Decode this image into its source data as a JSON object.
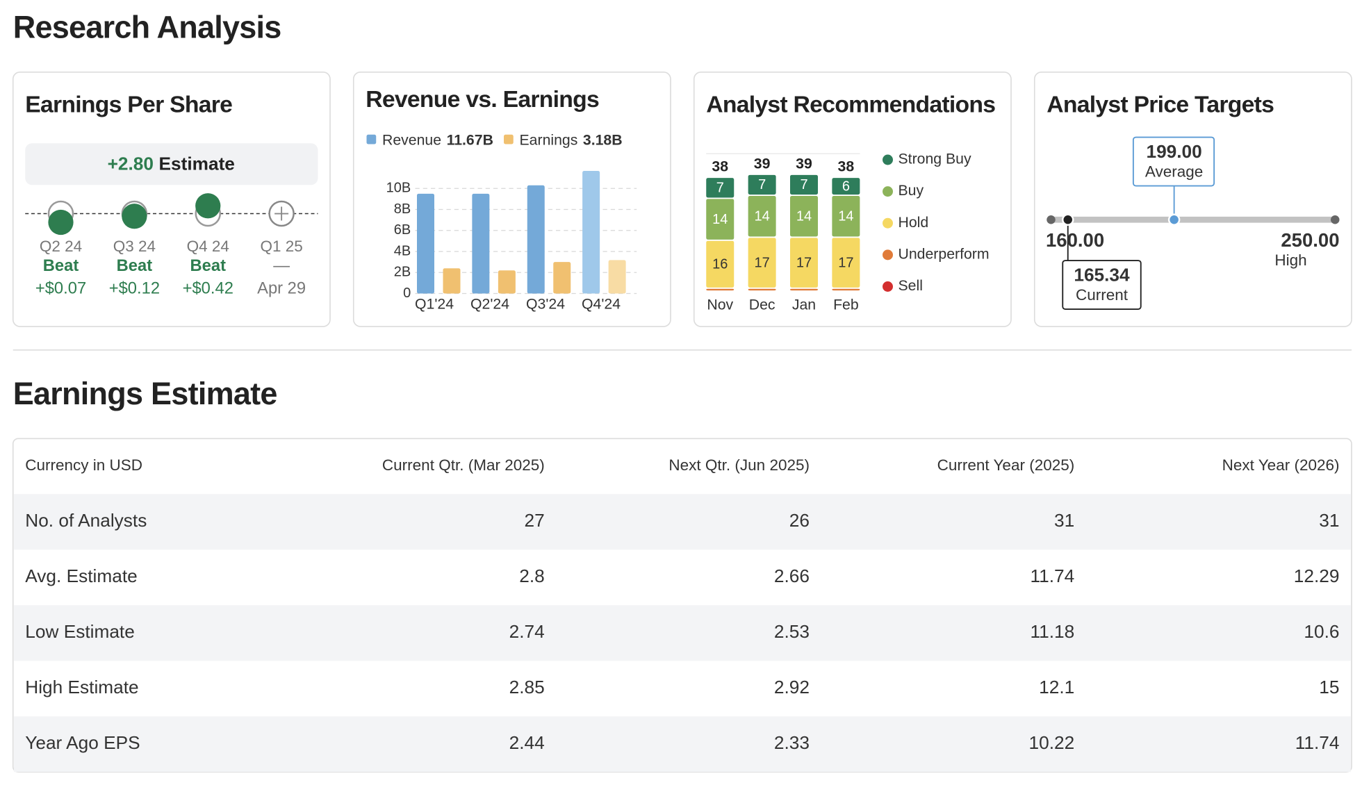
{
  "header": {
    "title": "Research Analysis"
  },
  "eps": {
    "title": "Earnings Per Share",
    "estimate": {
      "value": 2.8,
      "label": "+2.80",
      "name": "Estimate"
    },
    "quarters": [
      {
        "quarter": "Q2 24",
        "result": "Beat",
        "surprise": {
          "value": 0.07,
          "label": "+$0.07"
        }
      },
      {
        "quarter": "Q3 24",
        "result": "Beat",
        "surprise": {
          "value": 0.12,
          "label": "+$0.12"
        }
      },
      {
        "quarter": "Q4 24",
        "result": "Beat",
        "surprise": {
          "value": 0.42,
          "label": "+$0.42"
        }
      },
      {
        "quarter": "Q1 25",
        "result": "—",
        "date": "Apr 29"
      }
    ]
  },
  "revenue_earnings": {
    "type": "bar",
    "title": "Revenue vs. Earnings",
    "categories": [
      "Q1'24",
      "Q2'24",
      "Q3'24",
      "Q4'24"
    ],
    "series": [
      {
        "name": "Revenue",
        "legend_label": "11.67B",
        "color": "#74a9d8",
        "colors": [
          "#74a9d8",
          "#74a9d8",
          "#74a9d8",
          "#9fc8ea"
        ],
        "values": [
          9.5,
          9.5,
          10.3,
          11.67
        ]
      },
      {
        "name": "Earnings",
        "legend_label": "3.18B",
        "color": "#f0c070",
        "colors": [
          "#f0c070",
          "#f0c070",
          "#f0c070",
          "#f8dca4"
        ],
        "values": [
          2.4,
          2.2,
          3.0,
          3.18
        ]
      }
    ],
    "ylim": [
      0,
      12
    ],
    "yticks": [
      0,
      {
        "value": 2,
        "label": "2B"
      },
      {
        "value": 4,
        "label": "4B"
      },
      {
        "value": 6,
        "label": "6B"
      },
      {
        "value": 8,
        "label": "8B"
      },
      {
        "value": 10,
        "label": "10B"
      }
    ],
    "grid": true
  },
  "recommendations": {
    "type": "stacked-bar",
    "title": "Analyst Recommendations",
    "categories": [
      "Nov",
      "Dec",
      "Jan",
      "Feb"
    ],
    "totals": [
      38,
      39,
      39,
      38
    ],
    "series": [
      {
        "name": "Sell",
        "color": "#d32f2f",
        "values": [
          0,
          0,
          0,
          0
        ]
      },
      {
        "name": "Underperform",
        "color": "#e07b39",
        "values": [
          1,
          1,
          1,
          1
        ]
      },
      {
        "name": "Hold",
        "color": "#f5d862",
        "values": [
          16,
          17,
          17,
          17
        ]
      },
      {
        "name": "Buy",
        "color": "#8cb35a",
        "values": [
          14,
          14,
          14,
          14
        ]
      },
      {
        "name": "Strong Buy",
        "color": "#2e7d5b",
        "values": [
          7,
          7,
          7,
          6
        ]
      }
    ]
  },
  "price_targets": {
    "title": "Analyst Price Targets",
    "low": {
      "value": 160,
      "label": "160.00"
    },
    "high": {
      "value": 250,
      "label": "250.00",
      "name": "High"
    },
    "average": {
      "value": 199,
      "label": "199.00",
      "name": "Average"
    },
    "current": {
      "value": 165.34,
      "name": "Current"
    }
  },
  "earnings_estimate": {
    "title": "Earnings Estimate",
    "columns": [
      "Currency in USD",
      "Current Qtr. (Mar 2025)",
      "Next Qtr. (Jun 2025)",
      "Current Year (2025)",
      "Next Year (2026)"
    ],
    "rows": [
      [
        "No. of Analysts",
        27,
        26,
        31,
        31
      ],
      [
        "Avg. Estimate",
        2.8,
        2.66,
        11.74,
        12.29
      ],
      [
        "Low Estimate",
        2.74,
        2.53,
        11.18,
        10.6
      ],
      [
        "High Estimate",
        2.85,
        2.92,
        12.1,
        15
      ],
      [
        "Year Ago EPS",
        2.44,
        2.33,
        10.22,
        11.74
      ]
    ]
  }
}
